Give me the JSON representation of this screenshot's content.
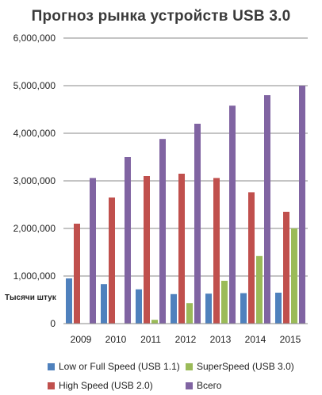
{
  "chart_data": {
    "type": "bar",
    "title": "Прогноз рынка устройств USB 3.0",
    "ylabel": "Тысячи штук",
    "xlabel": "",
    "categories": [
      "2009",
      "2010",
      "2011",
      "2012",
      "2013",
      "2014",
      "2015"
    ],
    "ylim": [
      0,
      6000000
    ],
    "yticks": [
      "0",
      "1,000,000",
      "2,000,000",
      "3,000,000",
      "4,000,000",
      "5,000,000",
      "6,000,000"
    ],
    "grid": true,
    "legend_position": "bottom",
    "series": [
      {
        "name": "Low or Full Speed (USB 1.1)",
        "color": "#4f81bd",
        "values": [
          950000,
          830000,
          720000,
          620000,
          630000,
          640000,
          650000
        ]
      },
      {
        "name": "SuperSpeed (USB 3.0)",
        "color": "#9bbb59",
        "values": [
          0,
          0,
          80000,
          430000,
          900000,
          1420000,
          2000000
        ]
      },
      {
        "name": "High Speed (USB 2.0)",
        "color": "#c0504d",
        "values": [
          2100000,
          2650000,
          3100000,
          3150000,
          3060000,
          2760000,
          2350000
        ]
      },
      {
        "name": "Всего",
        "color": "#8064a2",
        "values": [
          3060000,
          3500000,
          3880000,
          4200000,
          4580000,
          4800000,
          5000000
        ]
      }
    ]
  }
}
